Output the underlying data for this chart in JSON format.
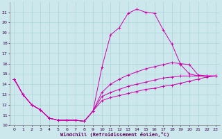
{
  "xlabel": "Windchill (Refroidissement éolien,°C)",
  "background_color": "#cce8ec",
  "line_color": "#cc00aa",
  "grid_color": "#aad4d8",
  "xlim": [
    -0.5,
    23.5
  ],
  "ylim": [
    10,
    22
  ],
  "xticks": [
    0,
    1,
    2,
    3,
    4,
    5,
    6,
    7,
    8,
    9,
    10,
    11,
    12,
    13,
    14,
    15,
    16,
    17,
    18,
    19,
    20,
    21,
    22,
    23
  ],
  "yticks": [
    10,
    11,
    12,
    13,
    14,
    15,
    16,
    17,
    18,
    19,
    20,
    21
  ],
  "lines": [
    {
      "x": [
        0,
        1,
        2,
        3,
        4,
        5,
        6,
        7,
        8,
        9,
        10,
        11,
        12,
        13,
        14,
        15,
        16,
        17,
        18,
        19,
        20,
        21,
        22,
        23
      ],
      "y": [
        14.5,
        13.0,
        12.0,
        11.5,
        10.7,
        10.5,
        10.5,
        10.5,
        10.4,
        11.4,
        15.6,
        18.8,
        19.5,
        20.9,
        21.3,
        21.0,
        20.9,
        19.3,
        17.9,
        15.9,
        15.0,
        14.8,
        14.8,
        14.8
      ]
    },
    {
      "x": [
        0,
        1,
        2,
        3,
        4,
        5,
        6,
        7,
        8,
        9,
        10,
        11,
        12,
        13,
        14,
        15,
        16,
        17,
        18,
        19,
        20,
        21,
        22,
        23
      ],
      "y": [
        14.5,
        13.0,
        12.0,
        11.5,
        10.7,
        10.5,
        10.5,
        10.5,
        10.4,
        11.4,
        13.2,
        14.0,
        14.5,
        14.9,
        15.2,
        15.5,
        15.7,
        15.9,
        16.1,
        16.0,
        15.9,
        14.9,
        14.8,
        14.8
      ]
    },
    {
      "x": [
        0,
        1,
        2,
        3,
        4,
        5,
        6,
        7,
        8,
        9,
        10,
        11,
        12,
        13,
        14,
        15,
        16,
        17,
        18,
        19,
        20,
        21,
        22,
        23
      ],
      "y": [
        14.5,
        13.0,
        12.0,
        11.5,
        10.7,
        10.5,
        10.5,
        10.5,
        10.4,
        11.4,
        12.8,
        13.2,
        13.5,
        13.8,
        14.0,
        14.2,
        14.4,
        14.6,
        14.7,
        14.8,
        14.8,
        14.8,
        14.8,
        14.8
      ]
    },
    {
      "x": [
        0,
        1,
        2,
        3,
        4,
        5,
        6,
        7,
        8,
        9,
        10,
        11,
        12,
        13,
        14,
        15,
        16,
        17,
        18,
        19,
        20,
        21,
        22,
        23
      ],
      "y": [
        14.5,
        13.0,
        12.0,
        11.5,
        10.7,
        10.5,
        10.5,
        10.5,
        10.4,
        11.4,
        12.4,
        12.7,
        12.9,
        13.1,
        13.3,
        13.5,
        13.6,
        13.8,
        13.9,
        14.1,
        14.3,
        14.5,
        14.7,
        14.8
      ]
    }
  ]
}
